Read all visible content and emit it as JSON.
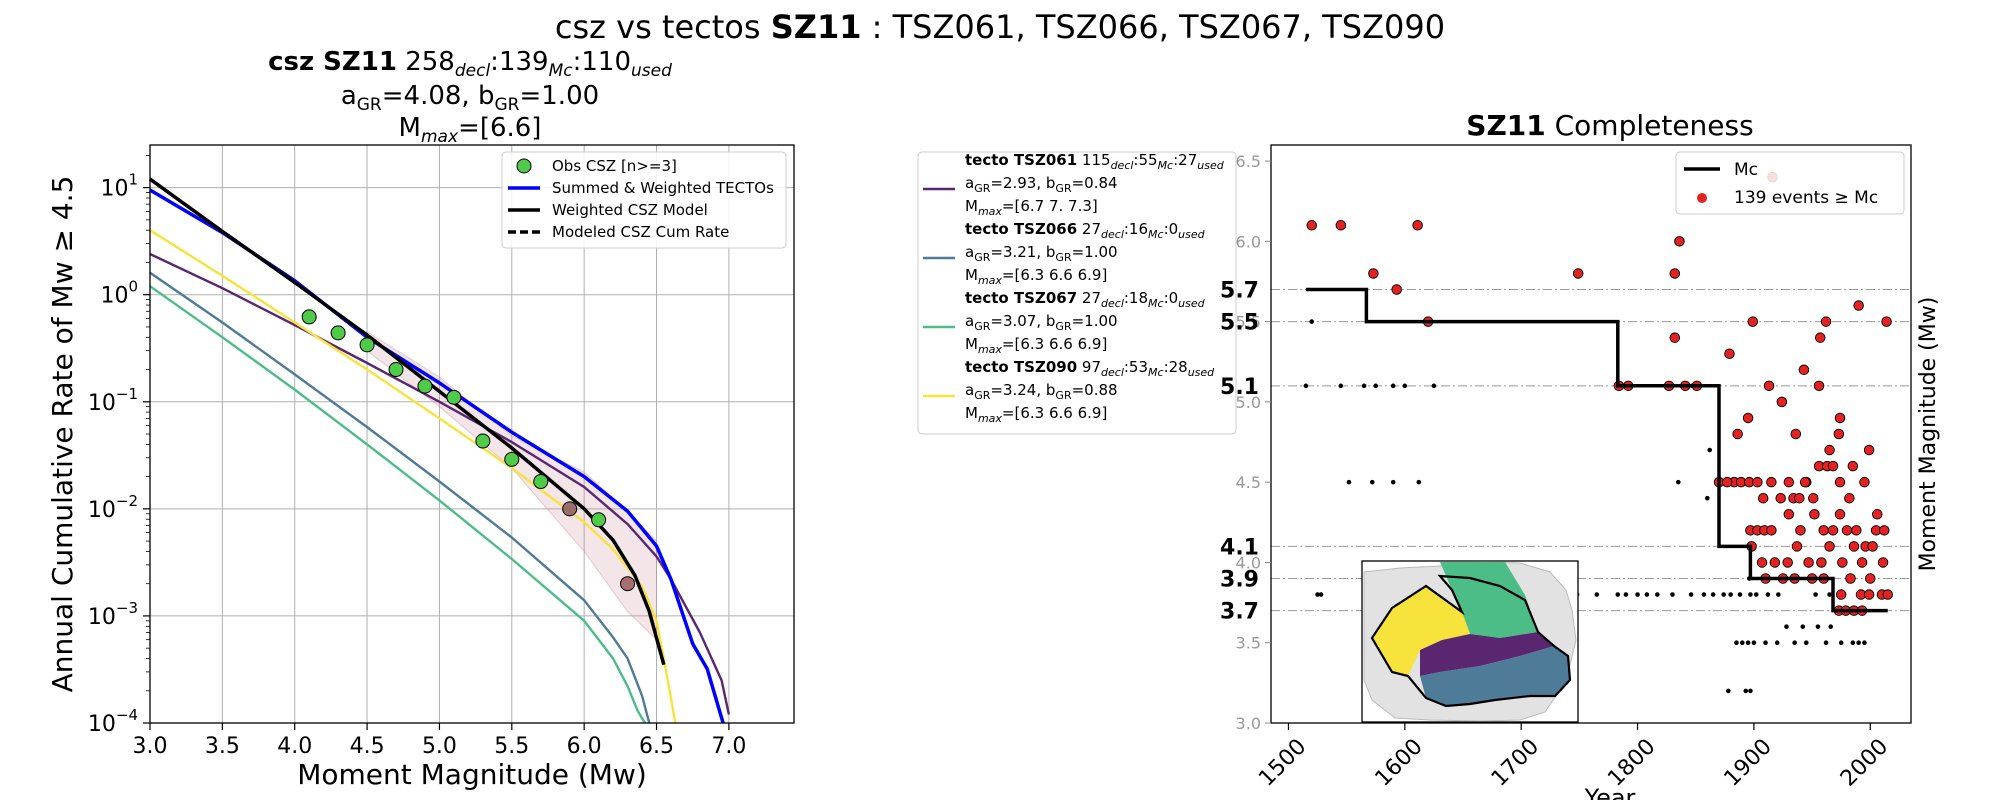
{
  "suptitle": {
    "prefix": "csz vs tectos ",
    "bold": "SZ11",
    "suffix": " : TSZ061, TSZ066, TSZ067, TSZ090"
  },
  "left_title": {
    "line1_bold": "csz SZ11",
    "decl": "258",
    "decl_sub": "decl",
    "mc": "139",
    "mc_sub": "Mc",
    "used": "110",
    "used_sub": "used",
    "a_label": "a",
    "a_sub": "GR",
    "a_val": "=4.08,",
    "b_label": "b",
    "b_sub": "GR",
    "b_val": "=1.00",
    "mmax_label": "M",
    "mmax_sub": "max",
    "mmax_val": "=[6.6]"
  },
  "right_title": {
    "bold": "SZ11",
    "rest": " Completeness"
  },
  "colors": {
    "tsz061": "#5a2670",
    "tsz066": "#4e7b98",
    "tsz067": "#4dbd88",
    "tsz090": "#f7e33c",
    "summed": "#0000ff",
    "csz": "#000000",
    "obs": "#4fca49",
    "events": "#e52222",
    "mc_line": "#000000"
  },
  "chart_data": [
    {
      "type": "line",
      "xlabel": "Moment Magnitude (Mw)",
      "ylabel": "Annual Cumulative Rate of Mw  ≥  4.5",
      "xlim": [
        3.0,
        7.45
      ],
      "ylim": [
        0.0001,
        25
      ],
      "yscale": "log",
      "grid": true,
      "legend_position": "upper right",
      "x_ticks": [
        "3.0",
        "3.5",
        "4.0",
        "4.5",
        "5.0",
        "5.5",
        "6.0",
        "6.5",
        "7.0"
      ],
      "y_ticks": [
        {
          "base": "10",
          "exp": "1"
        },
        {
          "base": "10",
          "exp": "0"
        },
        {
          "base": "10",
          "exp": "−1"
        },
        {
          "base": "10",
          "exp": "−2"
        },
        {
          "base": "10",
          "exp": "−3"
        },
        {
          "base": "10",
          "exp": "−4"
        }
      ],
      "legend": [
        {
          "key": "obs",
          "label": "Obs CSZ [n>=3]"
        },
        {
          "key": "summed",
          "label": "Summed & Weighted TECTOs"
        },
        {
          "key": "csz",
          "label": "Weighted CSZ Model"
        },
        {
          "key": "csz_dashed",
          "label": "Modeled CSZ Cum Rate"
        }
      ],
      "series": [
        {
          "key": "tsz061",
          "x": [
            3.0,
            3.5,
            4.0,
            4.5,
            5.0,
            5.5,
            6.0,
            6.3,
            6.5,
            6.6,
            6.8,
            6.95,
            7.0
          ],
          "y": [
            2.4,
            1.15,
            0.52,
            0.23,
            0.1,
            0.042,
            0.016,
            0.0072,
            0.0036,
            0.0022,
            0.0007,
            0.00025,
            0.00012
          ]
        },
        {
          "key": "tsz066",
          "x": [
            3.0,
            3.5,
            4.0,
            4.5,
            5.0,
            5.5,
            6.0,
            6.2,
            6.3,
            6.4,
            6.45
          ],
          "y": [
            1.6,
            0.55,
            0.18,
            0.058,
            0.018,
            0.0054,
            0.0014,
            0.00063,
            0.0004,
            0.00018,
            0.0001
          ]
        },
        {
          "key": "tsz067",
          "x": [
            3.0,
            3.5,
            4.0,
            4.5,
            5.0,
            5.5,
            6.0,
            6.2,
            6.3,
            6.37,
            6.42
          ],
          "y": [
            1.2,
            0.4,
            0.13,
            0.04,
            0.012,
            0.0034,
            0.0009,
            0.0004,
            0.00022,
            0.00013,
            0.0001
          ]
        },
        {
          "key": "tsz090",
          "x": [
            3.0,
            3.5,
            4.0,
            4.5,
            5.0,
            5.5,
            6.0,
            6.2,
            6.4,
            6.5,
            6.55,
            6.6,
            6.63
          ],
          "y": [
            4.0,
            1.5,
            0.55,
            0.2,
            0.07,
            0.024,
            0.0075,
            0.0042,
            0.0019,
            0.0009,
            0.0004,
            0.00017,
            0.0001
          ]
        },
        {
          "key": "summed",
          "x": [
            3.0,
            3.5,
            4.0,
            4.5,
            5.0,
            5.5,
            6.0,
            6.3,
            6.5,
            6.6,
            6.75,
            6.85,
            6.96
          ],
          "y": [
            9.5,
            3.8,
            1.35,
            0.4,
            0.15,
            0.052,
            0.02,
            0.0095,
            0.0045,
            0.0022,
            0.00055,
            0.00032,
            0.0001
          ]
        },
        {
          "key": "csz",
          "x": [
            3.0,
            3.5,
            4.0,
            4.5,
            5.0,
            5.5,
            6.0,
            6.2,
            6.35,
            6.45,
            6.55
          ],
          "y": [
            12,
            3.9,
            1.3,
            0.42,
            0.125,
            0.037,
            0.01,
            0.0051,
            0.0024,
            0.0011,
            0.00035
          ]
        }
      ],
      "uncertainty_band": {
        "x": [
          4.5,
          5.0,
          5.5,
          6.0,
          6.3,
          6.5
        ],
        "upper": [
          0.45,
          0.17,
          0.048,
          0.022,
          0.0095,
          0.005
        ],
        "lower": [
          0.3,
          0.09,
          0.024,
          0.004,
          0.0011,
          0.0006
        ]
      },
      "observed": {
        "x": [
          4.1,
          4.3,
          4.5,
          4.7,
          4.9,
          5.1,
          5.3,
          5.5,
          5.7,
          5.9,
          6.1,
          6.3
        ],
        "y": [
          0.62,
          0.44,
          0.34,
          0.2,
          0.14,
          0.11,
          0.043,
          0.029,
          0.018,
          0.01,
          0.0079,
          0.002
        ]
      }
    },
    {
      "type": "scatter",
      "title": "SZ11 Completeness",
      "xlabel": "Year",
      "ylabel": "Moment Magnitude (Mw)",
      "xlim": [
        1485,
        2035
      ],
      "ylim": [
        3.0,
        6.6
      ],
      "x_ticks": [
        "1500",
        "1600",
        "1700",
        "1800",
        "1900",
        "2000"
      ],
      "y_ticks": [
        "3.0",
        "3.5",
        "4.0",
        "4.5",
        "5.0",
        "5.5",
        "6.0",
        "6.5"
      ],
      "mc_labels": [
        "5.7",
        "5.5",
        "5.1",
        "4.1",
        "3.9",
        "3.7"
      ],
      "legend": [
        {
          "key": "mc",
          "label": "Mc"
        },
        {
          "key": "events",
          "label": "139 events  ≥  Mc"
        }
      ],
      "mc_step": {
        "x": [
          1515,
          1567,
          1567,
          1783,
          1783,
          1870,
          1870,
          1897,
          1897,
          1968,
          1968,
          2015
        ],
        "y": [
          5.7,
          5.7,
          5.5,
          5.5,
          5.1,
          5.1,
          4.1,
          4.1,
          3.9,
          3.9,
          3.7,
          3.7
        ]
      },
      "events_above_mc": [
        [
          1520,
          6.1
        ],
        [
          1545,
          6.1
        ],
        [
          1573,
          5.8
        ],
        [
          1593,
          5.7
        ],
        [
          1611,
          6.1
        ],
        [
          1620,
          5.5
        ],
        [
          1749,
          5.8
        ],
        [
          1832,
          5.8
        ],
        [
          1836,
          6.0
        ],
        [
          1832,
          5.4
        ],
        [
          1784,
          5.1
        ],
        [
          1792,
          5.1
        ],
        [
          1827,
          5.1
        ],
        [
          1841,
          5.1
        ],
        [
          1851,
          5.1
        ],
        [
          1879,
          5.3
        ],
        [
          1883,
          4.5
        ],
        [
          1889,
          4.5
        ],
        [
          1896,
          4.5
        ],
        [
          1903,
          4.5
        ],
        [
          1886,
          4.8
        ],
        [
          1895,
          4.9
        ],
        [
          1899,
          5.5
        ],
        [
          1913,
          5.1
        ],
        [
          1916,
          6.4
        ],
        [
          1924,
          5.0
        ],
        [
          1936,
          4.8
        ],
        [
          1943,
          5.2
        ],
        [
          1956,
          5.1
        ],
        [
          1957,
          5.4
        ],
        [
          1962,
          5.5
        ],
        [
          1990,
          5.6
        ],
        [
          2014,
          5.5
        ],
        [
          1870,
          4.5
        ],
        [
          1877,
          4.5
        ],
        [
          1908,
          4.4
        ],
        [
          1915,
          4.5
        ],
        [
          1923,
          4.4
        ],
        [
          1934,
          4.4
        ],
        [
          1945,
          4.5
        ],
        [
          1956,
          4.6
        ],
        [
          1965,
          4.7
        ],
        [
          1974,
          4.5
        ],
        [
          1982,
          4.4
        ],
        [
          1995,
          4.5
        ],
        [
          2006,
          4.3
        ],
        [
          1897,
          4.2
        ],
        [
          1903,
          4.2
        ],
        [
          1909,
          4.2
        ],
        [
          1915,
          4.2
        ],
        [
          1930,
          4.3
        ],
        [
          1940,
          4.2
        ],
        [
          1952,
          4.3
        ],
        [
          1960,
          4.2
        ],
        [
          1968,
          4.2
        ],
        [
          1974,
          4.3
        ],
        [
          1980,
          4.2
        ],
        [
          1988,
          4.2
        ],
        [
          1996,
          4.1
        ],
        [
          2005,
          4.2
        ],
        [
          2012,
          4.2
        ],
        [
          1898,
          4.1
        ],
        [
          1907,
          4.0
        ],
        [
          1918,
          4.0
        ],
        [
          1929,
          4.0
        ],
        [
          1937,
          4.1
        ],
        [
          1947,
          4.0
        ],
        [
          1958,
          4.0
        ],
        [
          1965,
          4.1
        ],
        [
          1976,
          4.0
        ],
        [
          1986,
          4.1
        ],
        [
          1993,
          4.0
        ],
        [
          2002,
          4.1
        ],
        [
          2011,
          4.0
        ],
        [
          1910,
          3.9
        ],
        [
          1925,
          3.9
        ],
        [
          1935,
          3.9
        ],
        [
          1950,
          3.9
        ],
        [
          1960,
          3.9
        ],
        [
          1975,
          3.8
        ],
        [
          1983,
          3.9
        ],
        [
          1992,
          3.8
        ],
        [
          2000,
          3.9
        ],
        [
          2010,
          3.8
        ],
        [
          2015,
          3.8
        ],
        [
          1973,
          3.7
        ],
        [
          1979,
          3.7
        ],
        [
          1986,
          3.7
        ],
        [
          1993,
          3.7
        ],
        [
          1999,
          3.8
        ],
        [
          1944,
          4.5
        ],
        [
          1963,
          4.6
        ],
        [
          1973,
          4.8
        ],
        [
          1985,
          4.6
        ],
        [
          1999,
          4.7
        ],
        [
          1974,
          4.9
        ],
        [
          1968,
          4.6
        ],
        [
          1951,
          4.4
        ],
        [
          1939,
          4.4
        ],
        [
          1930,
          4.5
        ]
      ],
      "events_below_mc": [
        [
          1520,
          5.5
        ],
        [
          1515,
          5.1
        ],
        [
          1545,
          5.1
        ],
        [
          1565,
          5.1
        ],
        [
          1575,
          5.1
        ],
        [
          1590,
          5.1
        ],
        [
          1600,
          5.1
        ],
        [
          1625,
          5.1
        ],
        [
          1552,
          4.5
        ],
        [
          1572,
          4.5
        ],
        [
          1590,
          4.5
        ],
        [
          1612,
          4.5
        ],
        [
          1525,
          3.8
        ],
        [
          1528,
          3.8
        ],
        [
          1790,
          3.8
        ],
        [
          1800,
          3.8
        ],
        [
          1808,
          3.8
        ],
        [
          1817,
          3.8
        ],
        [
          1830,
          3.8
        ],
        [
          1846,
          3.8
        ],
        [
          1732,
          3.8
        ],
        [
          1748,
          3.8
        ],
        [
          1765,
          3.8
        ],
        [
          1783,
          3.8
        ],
        [
          1857,
          3.8
        ],
        [
          1865,
          3.8
        ],
        [
          1874,
          3.8
        ],
        [
          1880,
          3.8
        ],
        [
          1888,
          3.8
        ],
        [
          1897,
          3.8
        ],
        [
          1885,
          3.5
        ],
        [
          1890,
          3.5
        ],
        [
          1895,
          3.5
        ],
        [
          1900,
          3.5
        ],
        [
          1910,
          3.5
        ],
        [
          1920,
          3.5
        ],
        [
          1935,
          3.5
        ],
        [
          1945,
          3.5
        ],
        [
          1962,
          3.5
        ],
        [
          1975,
          3.5
        ],
        [
          1985,
          3.5
        ],
        [
          1990,
          3.5
        ],
        [
          1995,
          3.5
        ],
        [
          1878,
          3.2
        ],
        [
          1893,
          3.2
        ],
        [
          1897,
          3.2
        ],
        [
          1862,
          4.7
        ],
        [
          1835,
          4.5
        ],
        [
          1847,
          5.1
        ],
        [
          1860,
          4.4
        ],
        [
          1953,
          3.8
        ],
        [
          1965,
          3.8
        ],
        [
          1966,
          3.6
        ],
        [
          1928,
          3.6
        ],
        [
          1942,
          3.6
        ],
        [
          1955,
          3.6
        ],
        [
          1896,
          3.9
        ],
        [
          1902,
          3.8
        ],
        [
          1912,
          3.8
        ],
        [
          1921,
          3.8
        ]
      ]
    }
  ],
  "legend_right": [
    {
      "key": "tsz061",
      "name": "tecto TSZ061",
      "decl": "115",
      "mc": "55",
      "used": "27",
      "a": "=2.93,",
      "b": "=0.84",
      "mmax": "=[6.7 7.  7.3]"
    },
    {
      "key": "tsz066",
      "name": "tecto TSZ066",
      "decl": "27",
      "mc": "16",
      "used": "0",
      "a": "=3.21,",
      "b": "=1.00",
      "mmax": "=[6.3 6.6 6.9]"
    },
    {
      "key": "tsz067",
      "name": "tecto TSZ067",
      "decl": "27",
      "mc": "18",
      "used": "0",
      "a": "=3.07,",
      "b": "=1.00",
      "mmax": "=[6.3 6.6 6.9]"
    },
    {
      "key": "tsz090",
      "name": "tecto TSZ090",
      "decl": "97",
      "mc": "53",
      "used": "28",
      "a": "=3.24,",
      "b": "=0.88",
      "mmax": "=[6.3 6.6 6.9]"
    }
  ],
  "legend_sub": {
    "decl": "decl",
    "mc": "Mc",
    "used": "used",
    "a": "a",
    "b": "b",
    "gr": "GR",
    "m": "M",
    "max": "max"
  }
}
